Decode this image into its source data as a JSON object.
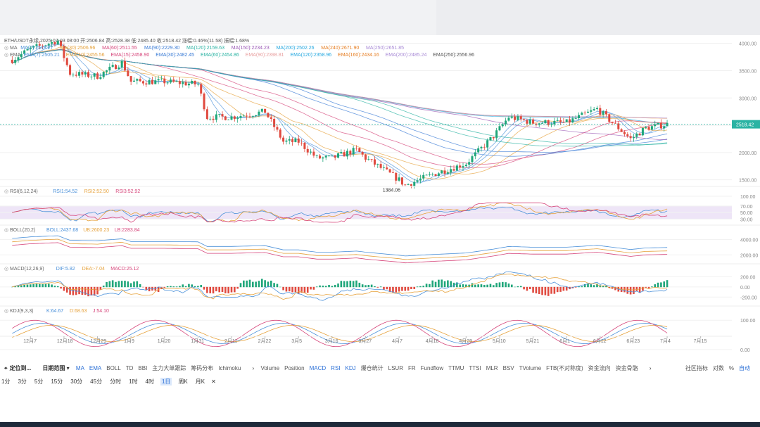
{
  "symbol": "ETH/USDT永续",
  "ohlc_header": {
    "date": "2025-07-03 08:00",
    "open": "开:2506.84",
    "high": "高:2528.38",
    "low": "低:2485.40",
    "close": "收:2518.42",
    "change": "涨幅:0.46%(11.58)",
    "amplitude": "振幅:1.68%"
  },
  "ma_line": {
    "label": "MA",
    "items": [
      {
        "text": "MA(7):2518.27",
        "color": "#4a90d9"
      },
      {
        "text": "MA(30):2506.96",
        "color": "#e6a23c"
      },
      {
        "text": "MA(60):2511.55",
        "color": "#d6457a"
      },
      {
        "text": "MA(90):2229.30",
        "color": "#3a7bd5"
      },
      {
        "text": "MA(120):2159.63",
        "color": "#2bb3a3"
      },
      {
        "text": "MA(150):2234.23",
        "color": "#9b59b6"
      },
      {
        "text": "MA(200):2502.26",
        "color": "#25a8e0"
      },
      {
        "text": "MA(240):2671.90",
        "color": "#e67e22"
      },
      {
        "text": "MA(250):2651.85",
        "color": "#a98bd6"
      }
    ]
  },
  "ema_line": {
    "label": "EMA",
    "items": [
      {
        "text": "EMA(7):2505.21",
        "color": "#4a90d9"
      },
      {
        "text": "EMA(10):2455.56",
        "color": "#e6a23c"
      },
      {
        "text": "EMA(15):2458.90",
        "color": "#d6457a"
      },
      {
        "text": "EMA(30):2482.45",
        "color": "#3a7bd5"
      },
      {
        "text": "EMA(60):2454.86",
        "color": "#2bb3a3"
      },
      {
        "text": "EMA(90):2398.81",
        "color": "#e8a0a0"
      },
      {
        "text": "EMA(120):2358.96",
        "color": "#25a8e0"
      },
      {
        "text": "EMA(160):2434.16",
        "color": "#e67e22"
      },
      {
        "text": "EMA(200):2485.24",
        "color": "#a98bd6"
      },
      {
        "text": "EMA(250):2556.96",
        "color": "#555555"
      }
    ]
  },
  "rsi_label": {
    "name": "RSI(6,12,24)",
    "items": [
      {
        "text": "RSI1:54.52",
        "color": "#4a90d9"
      },
      {
        "text": "RSI2:52.50",
        "color": "#e6a23c"
      },
      {
        "text": "RSI3:52.92",
        "color": "#d6457a"
      }
    ]
  },
  "boll_label": {
    "name": "BOLL(20,2)",
    "items": [
      {
        "text": "BOLL:2437.68",
        "color": "#4a90d9"
      },
      {
        "text": "UB:2600.23",
        "color": "#e6a23c"
      },
      {
        "text": "LB:2283.84",
        "color": "#d6457a"
      }
    ]
  },
  "macd_label": {
    "name": "MACD(12,26,9)",
    "items": [
      {
        "text": "DIF:5.82",
        "color": "#4a90d9"
      },
      {
        "text": "DEA:-7.04",
        "color": "#e6a23c"
      },
      {
        "text": "MACD:25.12",
        "color": "#d6457a"
      }
    ]
  },
  "kdj_label": {
    "name": "KDJ(9,3,3)",
    "items": [
      {
        "text": "K:64.67",
        "color": "#4a90d9"
      },
      {
        "text": "D:68.63",
        "color": "#e6a23c"
      },
      {
        "text": "J:54.10",
        "color": "#d6457a"
      }
    ]
  },
  "price_axis": [
    "4000.00",
    "3500.00",
    "3000.00",
    "2500.00",
    "2000.00",
    "1500.00"
  ],
  "current_price_tag": "2518.42",
  "low_marker": "1384.06",
  "rsi_axis": [
    "100.00",
    "70.00",
    "50.00",
    "30.00"
  ],
  "boll_axis": [
    "4000.00",
    "2000.00"
  ],
  "macd_axis": [
    "200.00",
    "0.00",
    "-200.00"
  ],
  "kdj_axis": [
    "100.00",
    "0.00"
  ],
  "x_axis_labels": [
    "12月7",
    "12月18",
    "12月29",
    "1月9",
    "1月20",
    "1月31",
    "2月11",
    "2月22",
    "3月5",
    "3月16",
    "3月27",
    "4月7",
    "4月18",
    "4月29",
    "5月10",
    "5月21",
    "6月1",
    "6月12",
    "6月23",
    "7月4",
    "7月15"
  ],
  "toolbar_main": {
    "locate": "定位到...",
    "range": "日期范围 ▾",
    "indicators_left": [
      "MA",
      "EMA",
      "BOLL",
      "TD",
      "BBI",
      "主力大单跟踪",
      "筹码分布",
      "Ichimoku"
    ],
    "indicators_right": [
      "Volume",
      "Position",
      "MACD",
      "RSI",
      "KDJ",
      "爆仓统计",
      "LSUR",
      "FR",
      "Fundflow",
      "TTMU",
      "TTSI",
      "MLR",
      "BSV",
      "TVolume",
      "FTB(不对称度)",
      "资金流向",
      "资金骨骼"
    ],
    "right_tools": [
      "社区指标",
      "对数",
      "%",
      "自动"
    ]
  },
  "timeframes": [
    "1分",
    "3分",
    "5分",
    "15分",
    "30分",
    "45分",
    "分时",
    "1时",
    "4时",
    "1日",
    "周K",
    "月K"
  ],
  "active_timeframe": "1日",
  "chart_data": {
    "type": "candlestick",
    "title": "ETH/USDT永续",
    "interval": "1日",
    "xlabel": "",
    "ylabel": "",
    "ylim": [
      1400,
      4150
    ],
    "grid": true,
    "date_range": [
      "2024-12-01",
      "2025-07-04"
    ],
    "approx_close_points": [
      {
        "date": "2024-12-01",
        "close": 3700
      },
      {
        "date": "2024-12-07",
        "close": 3900
      },
      {
        "date": "2024-12-16",
        "close": 4050
      },
      {
        "date": "2024-12-20",
        "close": 3450
      },
      {
        "date": "2024-12-29",
        "close": 3400
      },
      {
        "date": "2025-01-06",
        "close": 3650
      },
      {
        "date": "2025-01-09",
        "close": 3300
      },
      {
        "date": "2025-01-20",
        "close": 3300
      },
      {
        "date": "2025-01-31",
        "close": 3250
      },
      {
        "date": "2025-02-03",
        "close": 2650
      },
      {
        "date": "2025-02-11",
        "close": 2650
      },
      {
        "date": "2025-02-22",
        "close": 2750
      },
      {
        "date": "2025-02-28",
        "close": 2200
      },
      {
        "date": "2025-03-05",
        "close": 2200
      },
      {
        "date": "2025-03-11",
        "close": 1900
      },
      {
        "date": "2025-03-16",
        "close": 1900
      },
      {
        "date": "2025-03-24",
        "close": 2050
      },
      {
        "date": "2025-03-27",
        "close": 1900
      },
      {
        "date": "2025-04-07",
        "close": 1500
      },
      {
        "date": "2025-04-09",
        "close": 1400
      },
      {
        "date": "2025-04-18",
        "close": 1600
      },
      {
        "date": "2025-04-29",
        "close": 1800
      },
      {
        "date": "2025-05-08",
        "close": 2300
      },
      {
        "date": "2025-05-13",
        "close": 2650
      },
      {
        "date": "2025-05-21",
        "close": 2550
      },
      {
        "date": "2025-06-01",
        "close": 2550
      },
      {
        "date": "2025-06-11",
        "close": 2800
      },
      {
        "date": "2025-06-22",
        "close": 2250
      },
      {
        "date": "2025-06-27",
        "close": 2450
      },
      {
        "date": "2025-07-04",
        "close": 2518
      }
    ],
    "lows": [
      {
        "date": "2025-04-09",
        "value": 1384.06
      }
    ],
    "last_price": 2518.42,
    "indicators": {
      "RSI": {
        "RSI1": 54.52,
        "RSI2": 52.5,
        "RSI3": 52.92,
        "levels": [
          70,
          50,
          30
        ]
      },
      "BOLL": {
        "BOLL": 2437.68,
        "UB": 2600.23,
        "LB": 2283.84
      },
      "MACD": {
        "DIF": 5.82,
        "DEA": -7.04,
        "MACD": 25.12
      },
      "KDJ": {
        "K": 64.67,
        "D": 68.63,
        "J": 54.1
      }
    }
  }
}
